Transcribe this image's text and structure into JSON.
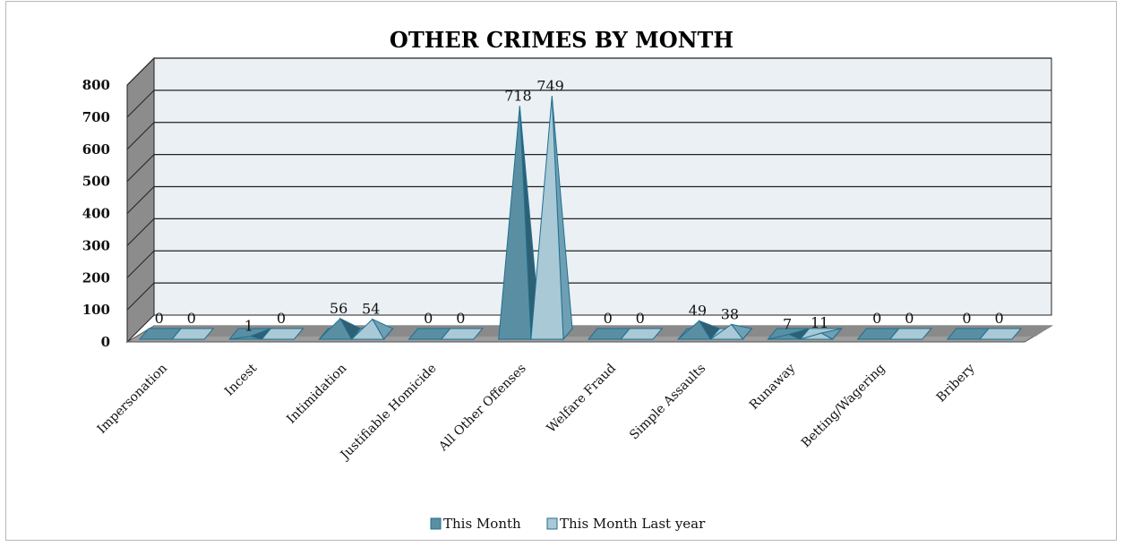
{
  "chart_data": {
    "type": "bar",
    "title": "OTHER CRIMES BY MONTH",
    "xlabel": "",
    "ylabel": "",
    "ylim": [
      0,
      800
    ],
    "yticks": [
      0,
      100,
      200,
      300,
      400,
      500,
      600,
      700,
      800
    ],
    "grid": true,
    "legend_position": "bottom",
    "categories": [
      "Impersonation",
      "Incest",
      "Intimidation",
      "Justifiable Homicide",
      "All Other Offenses",
      "Welfare Fraud",
      "Simple Assaults",
      "Runaway",
      "Betting/Wagering",
      "Bribery"
    ],
    "series": [
      {
        "name": "This Month",
        "color": "#5a8fa3",
        "values": [
          0,
          1,
          56,
          0,
          718,
          0,
          49,
          7,
          0,
          0
        ]
      },
      {
        "name": "This Month Last year",
        "color": "#a9c9d6",
        "values": [
          0,
          0,
          54,
          0,
          749,
          0,
          38,
          11,
          0,
          0
        ]
      }
    ]
  }
}
